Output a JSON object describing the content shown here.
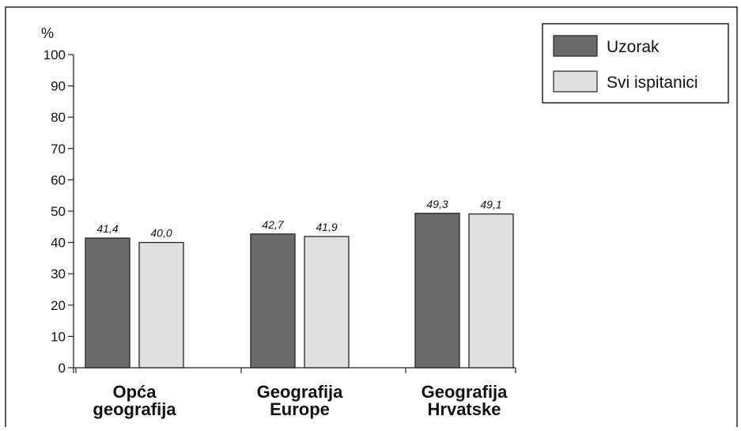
{
  "chart_data": {
    "type": "bar",
    "ylabel": "%",
    "ylim": [
      0,
      100
    ],
    "yticks": [
      "0",
      "10",
      "20",
      "30",
      "40",
      "50",
      "60",
      "70",
      "80",
      "90",
      "100"
    ],
    "categories": [
      [
        "Opća",
        "geografija"
      ],
      [
        "Geografija",
        "Europe"
      ],
      [
        "Geografija",
        "Hrvatske"
      ]
    ],
    "series": [
      {
        "name": "Uzorak",
        "color": "#6b6b6b",
        "values": [
          41.4,
          42.7,
          49.3
        ],
        "labels": [
          "41,4",
          "42,7",
          "49,3"
        ]
      },
      {
        "name": "Svi ispitanici",
        "color": "#e0e0e0",
        "values": [
          40.0,
          41.9,
          49.1
        ],
        "labels": [
          "40,0",
          "41,9",
          "49,1"
        ]
      }
    ],
    "legend_position": "top-right",
    "grid": false
  }
}
